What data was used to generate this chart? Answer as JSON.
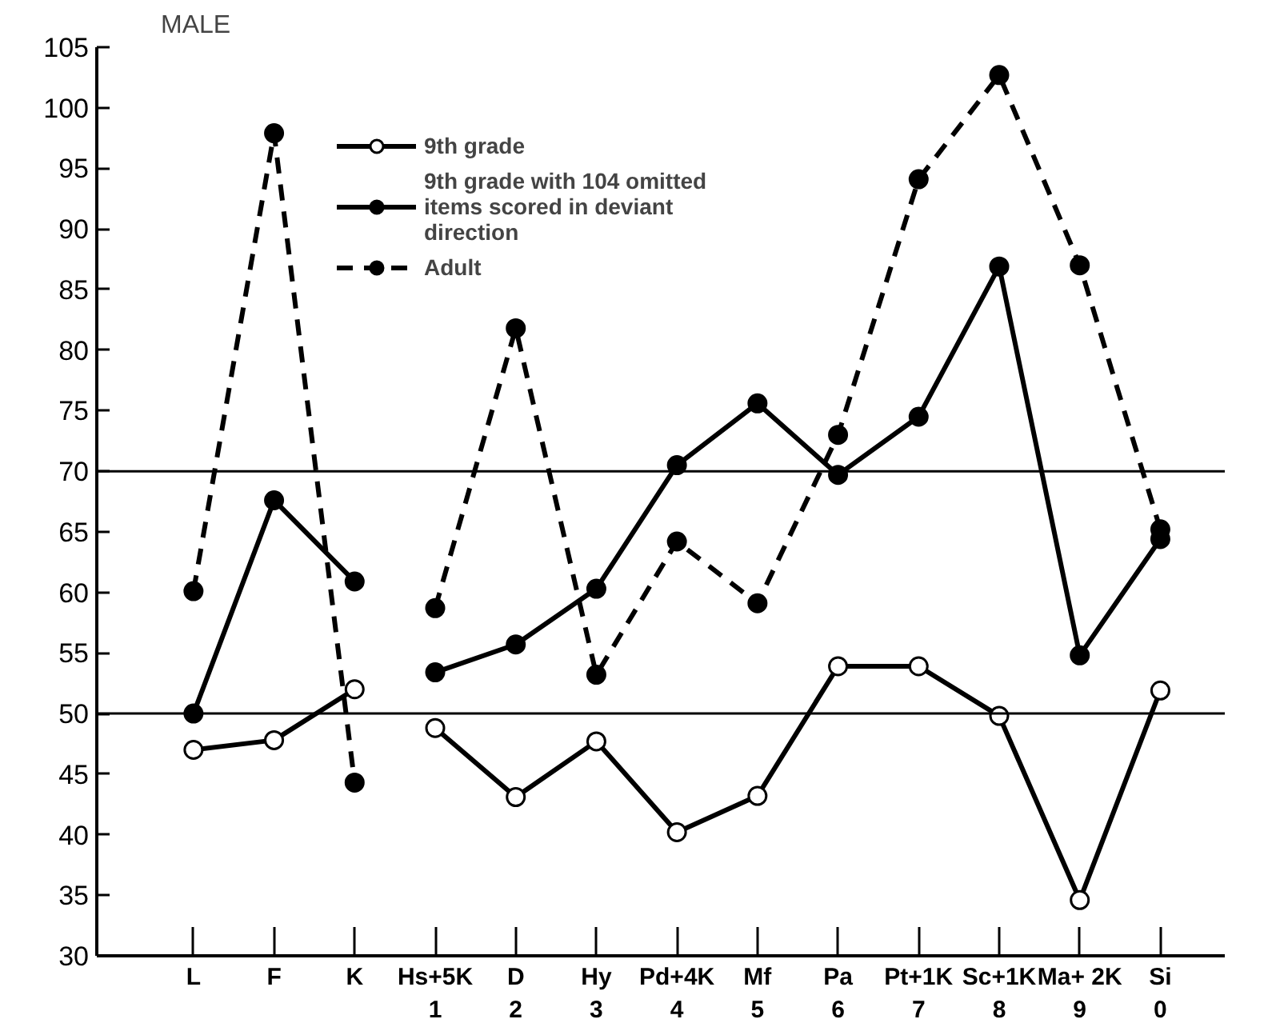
{
  "chart_data": {
    "type": "line",
    "title": "MALE",
    "categories": [
      "L",
      "F",
      "K",
      "Hs+5K\n1",
      "D\n2",
      "Hy\n3",
      "Pd+4K\n4",
      "Mf\n5",
      "Pa\n6",
      "Pt+1K\n7",
      "Sc+1K\n8",
      "Ma+ 2K\n9",
      "Si\n0"
    ],
    "ylim": [
      30,
      105
    ],
    "yticks": [
      30,
      35,
      40,
      45,
      50,
      55,
      60,
      65,
      70,
      75,
      80,
      85,
      90,
      95,
      100,
      105
    ],
    "grid": false,
    "legend": "top left",
    "marker": "circle",
    "ref_lines": [
      {
        "axis": "y",
        "value": 50
      },
      {
        "axis": "y",
        "value": 70
      }
    ],
    "series": [
      {
        "name": "9th grade",
        "color": "#000000",
        "marker": "circle_open",
        "line_style": "solid",
        "x": [
          "L",
          "F",
          "K"
        ],
        "values": [
          47.0,
          47.8,
          52.0
        ]
      },
      {
        "color": "#000000",
        "marker": "circle_open",
        "line_style": "solid",
        "x": [
          "Hs+5K\n1",
          "D\n2",
          "Hy\n3",
          "Pd+4K\n4",
          "Mf\n5",
          "Pa\n6",
          "Pt+1K\n7",
          "Sc+1K\n8",
          "Ma+ 2K\n9",
          "Si\n0"
        ],
        "values": [
          48.8,
          43.1,
          47.7,
          40.2,
          43.2,
          53.9,
          53.9,
          49.8,
          34.6,
          51.9
        ]
      },
      {
        "name": "9th grade with 104 omitted items scored in deviant direction",
        "color": "#000000",
        "line_style": "solid",
        "x": [
          "L",
          "F",
          "K"
        ],
        "values": [
          50.0,
          67.6,
          60.9
        ]
      },
      {
        "color": "#000000",
        "line_style": "solid",
        "x": [
          "Hs+5K\n1",
          "D\n2",
          "Hy\n3",
          "Pd+4K\n4",
          "Mf\n5",
          "Pa\n6",
          "Pt+1K\n7",
          "Sc+1K\n8",
          "Ma+ 2K\n9",
          "Si\n0"
        ],
        "values": [
          53.4,
          55.7,
          60.3,
          70.5,
          75.6,
          69.7,
          74.5,
          86.9,
          54.8,
          64.4
        ]
      },
      {
        "name": "Adult",
        "color": "#000000",
        "line_style": "dashed",
        "x": [
          "L",
          "F",
          "K"
        ],
        "values": [
          60.1,
          97.9,
          44.3
        ]
      },
      {
        "color": "#000000",
        "line_style": "dashed",
        "x": [
          "Hs+5K\n1",
          "D\n2",
          "Hy\n3",
          "Pd+4K\n4",
          "Mf\n5",
          "Pa\n6",
          "Pt+1K\n7",
          "Sc+1K\n8",
          "Ma+ 2K\n9",
          "Si\n0"
        ],
        "values": [
          58.7,
          81.8,
          53.2,
          64.2,
          59.1,
          73.0,
          94.1,
          102.7,
          87.0,
          65.2
        ]
      }
    ]
  }
}
